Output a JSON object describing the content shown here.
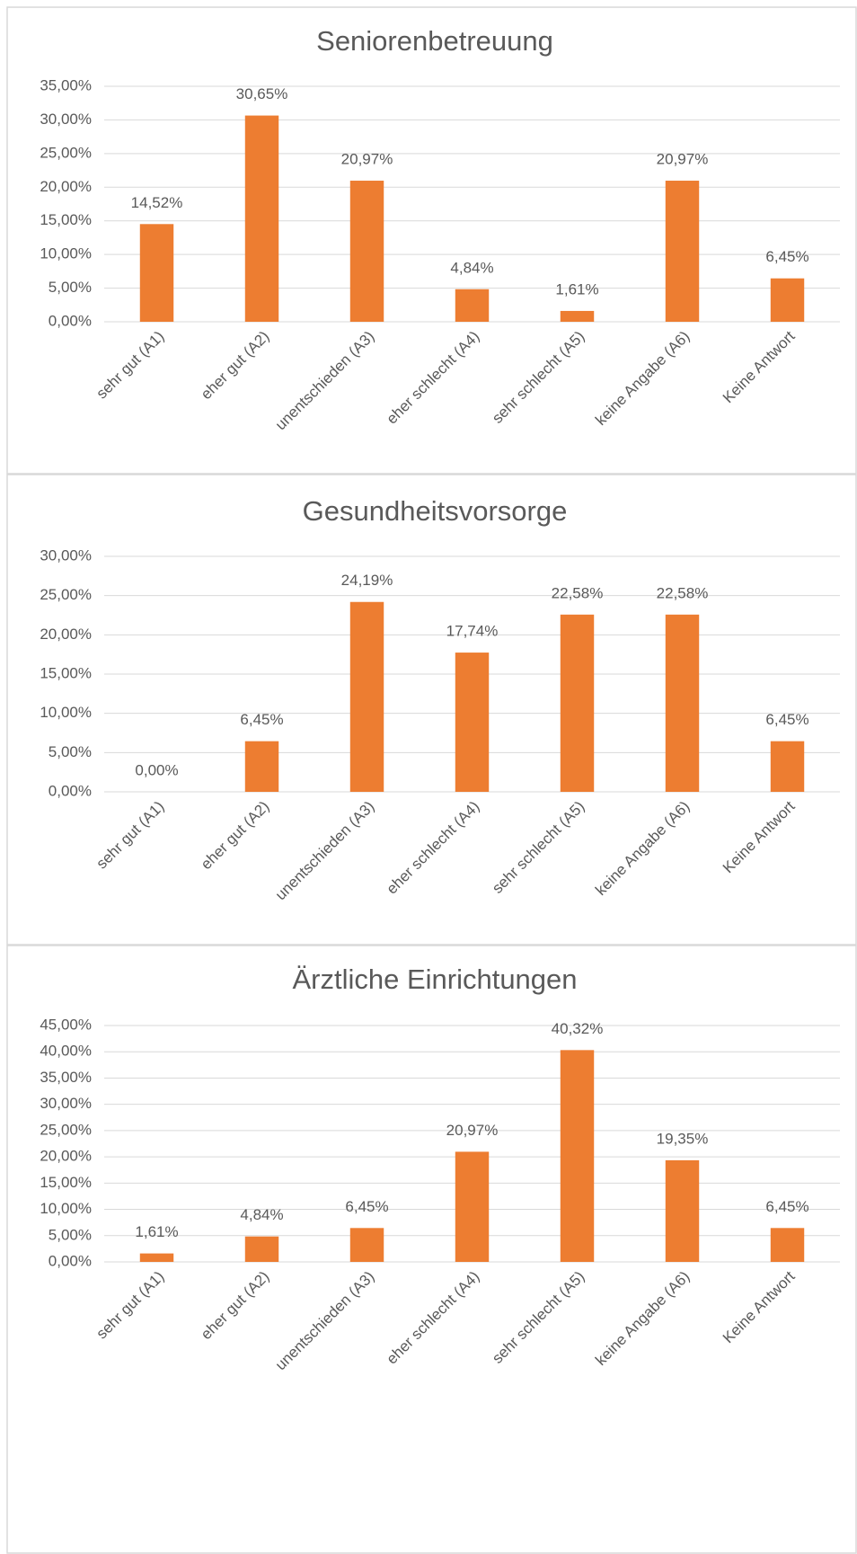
{
  "chart_data": [
    {
      "type": "bar",
      "title": "Seniorenbetreuung",
      "categories": [
        "sehr gut (A1)",
        "eher gut (A2)",
        "unentschieden (A3)",
        "eher schlecht (A4)",
        "sehr schlecht (A5)",
        "keine Angabe (A6)",
        "Keine Antwort"
      ],
      "values": [
        14.52,
        30.65,
        20.97,
        4.84,
        1.61,
        20.97,
        6.45
      ],
      "value_labels": [
        "14,52%",
        "30,65%",
        "20,97%",
        "4,84%",
        "1,61%",
        "20,97%",
        "6,45%"
      ],
      "color": "#ed7d31",
      "ylim": [
        0,
        35
      ],
      "yticks": [
        {
          "value": 0,
          "label": "0,00%"
        },
        {
          "value": 5,
          "label": "5,00%"
        },
        {
          "value": 10,
          "label": "10,00%"
        },
        {
          "value": 15,
          "label": "15,00%"
        },
        {
          "value": 20,
          "label": "20,00%"
        },
        {
          "value": 25,
          "label": "25,00%"
        },
        {
          "value": 30,
          "label": "30,00%"
        },
        {
          "value": 35,
          "label": "35,00%"
        }
      ],
      "grid": true
    },
    {
      "type": "bar",
      "title": "Gesundheitsvorsorge",
      "categories": [
        "sehr gut (A1)",
        "eher gut (A2)",
        "unentschieden (A3)",
        "eher schlecht (A4)",
        "sehr schlecht (A5)",
        "keine Angabe (A6)",
        "Keine Antwort"
      ],
      "values": [
        0,
        6.45,
        24.19,
        17.74,
        22.58,
        22.58,
        6.45
      ],
      "value_labels": [
        "0,00%",
        "6,45%",
        "24,19%",
        "17,74%",
        "22,58%",
        "22,58%",
        "6,45%"
      ],
      "color": "#ed7d31",
      "ylim": [
        0,
        30
      ],
      "yticks": [
        {
          "value": 0,
          "label": "0,00%"
        },
        {
          "value": 5,
          "label": "5,00%"
        },
        {
          "value": 10,
          "label": "10,00%"
        },
        {
          "value": 15,
          "label": "15,00%"
        },
        {
          "value": 20,
          "label": "20,00%"
        },
        {
          "value": 25,
          "label": "25,00%"
        },
        {
          "value": 30,
          "label": "30,00%"
        }
      ],
      "grid": true
    },
    {
      "type": "bar",
      "title": "Ärztliche Einrichtungen",
      "categories": [
        "sehr gut (A1)",
        "eher gut (A2)",
        "unentschieden (A3)",
        "eher schlecht (A4)",
        "sehr schlecht (A5)",
        "keine Angabe (A6)",
        "Keine Antwort"
      ],
      "values": [
        1.61,
        4.84,
        6.45,
        20.97,
        40.32,
        19.35,
        6.45
      ],
      "value_labels": [
        "1,61%",
        "4,84%",
        "6,45%",
        "20,97%",
        "40,32%",
        "19,35%",
        "6,45%"
      ],
      "color": "#ed7d31",
      "ylim": [
        0,
        45
      ],
      "yticks": [
        {
          "value": 0,
          "label": "0,00%"
        },
        {
          "value": 5,
          "label": "5,00%"
        },
        {
          "value": 10,
          "label": "10,00%"
        },
        {
          "value": 15,
          "label": "15,00%"
        },
        {
          "value": 20,
          "label": "20,00%"
        },
        {
          "value": 25,
          "label": "25,00%"
        },
        {
          "value": 30,
          "label": "30,00%"
        },
        {
          "value": 35,
          "label": "35,00%"
        },
        {
          "value": 40,
          "label": "40,00%"
        },
        {
          "value": 45,
          "label": "45,00%"
        }
      ],
      "grid": true
    }
  ]
}
